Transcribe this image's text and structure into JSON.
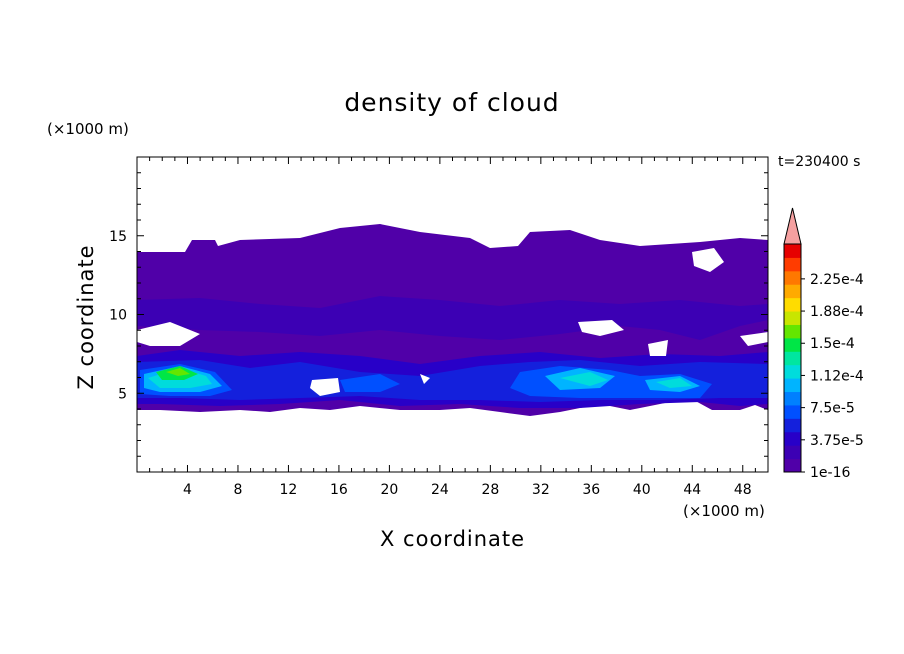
{
  "chart_data": {
    "type": "heatmap",
    "title": "density of cloud",
    "xlabel": "X coordinate",
    "ylabel": "Z coordinate",
    "x_unit": "(×1000 m)",
    "y_unit": "(×1000 m)",
    "timestamp": "t=230400 s",
    "xlim": [
      0,
      50
    ],
    "ylim": [
      0,
      20
    ],
    "x_ticks": [
      "4",
      "8",
      "12",
      "16",
      "20",
      "24",
      "28",
      "32",
      "36",
      "40",
      "44",
      "48"
    ],
    "y_ticks": [
      "5",
      "10",
      "15"
    ],
    "colorbar": {
      "labels": [
        "1e-16",
        "3.75e-5",
        "7.5e-5",
        "1.12e-4",
        "1.5e-4",
        "1.88e-4",
        "2.25e-4"
      ],
      "colors": [
        "#5000a8",
        "#3c00b4",
        "#2800c8",
        "#1420dc",
        "#0050ff",
        "#0080ff",
        "#00b4ff",
        "#00dcdc",
        "#00e6a0",
        "#00e646",
        "#64e600",
        "#c8e600",
        "#ffdc00",
        "#ffaa00",
        "#ff7800",
        "#ff3c00",
        "#e60000"
      ],
      "extend_color": "#f5a0a0"
    },
    "field_summary": {
      "cloud_top_km": 15.5,
      "cloud_base_km": 4,
      "max_value_region": "x 1-6 km, z 5-7 km"
    }
  }
}
